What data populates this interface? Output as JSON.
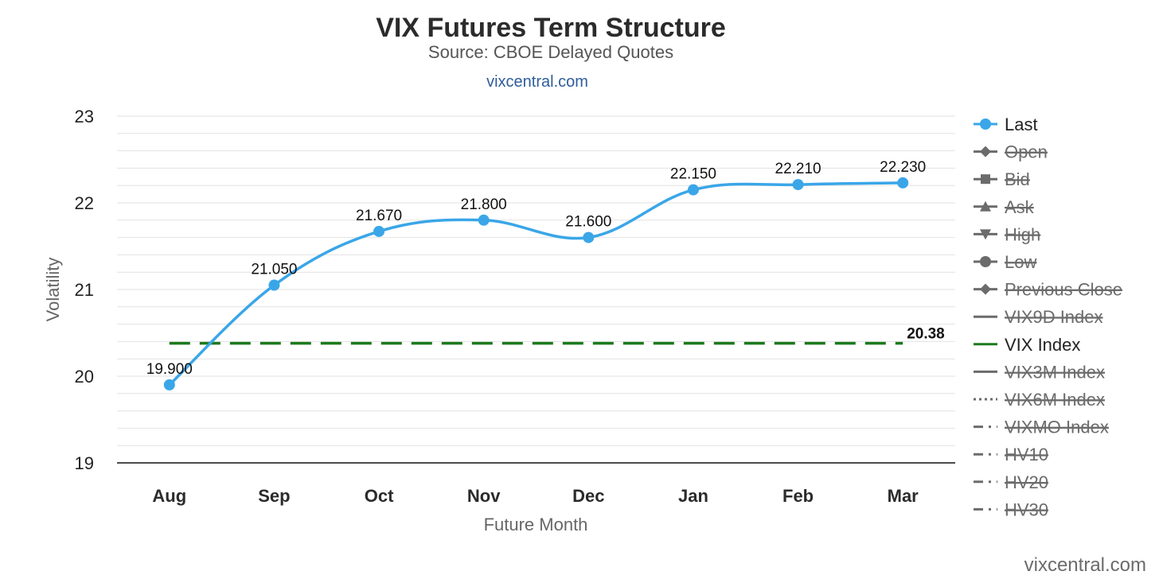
{
  "chart_data": {
    "type": "line",
    "title": "VIX Futures Term Structure",
    "subtitle": "Source: CBOE Delayed Quotes",
    "credit": "vixcentral.com",
    "watermark": "vixcentral.com",
    "xlabel": "Future Month",
    "ylabel": "Volatility",
    "ylim": [
      19,
      23
    ],
    "yticks": [
      19,
      20,
      21,
      22,
      23
    ],
    "grid": true,
    "legend_position": "right",
    "categories": [
      "Aug",
      "Sep",
      "Oct",
      "Nov",
      "Dec",
      "Jan",
      "Feb",
      "Mar"
    ],
    "series": [
      {
        "name": "Last",
        "values": [
          19.9,
          21.05,
          21.67,
          21.8,
          21.6,
          22.15,
          22.21,
          22.23
        ],
        "labels": [
          "19.900",
          "21.050",
          "21.670",
          "21.800",
          "21.600",
          "22.150",
          "22.210",
          "22.230"
        ],
        "color": "#3aa6e8"
      },
      {
        "name": "VIX Index",
        "value": 20.38,
        "label": "20.38",
        "color": "#1c7a1c",
        "style": "dashed"
      }
    ],
    "legend": [
      {
        "name": "Last",
        "visible": true,
        "symbol": "circle",
        "line": "solid",
        "color": "#3aa6e8"
      },
      {
        "name": "Open",
        "visible": false,
        "symbol": "diamond",
        "line": "solid",
        "color": "#6b6b6b"
      },
      {
        "name": "Bid",
        "visible": false,
        "symbol": "square",
        "line": "solid",
        "color": "#6b6b6b"
      },
      {
        "name": "Ask",
        "visible": false,
        "symbol": "triangle",
        "line": "solid",
        "color": "#6b6b6b"
      },
      {
        "name": "High",
        "visible": false,
        "symbol": "triangle-down",
        "line": "solid",
        "color": "#6b6b6b"
      },
      {
        "name": "Low",
        "visible": false,
        "symbol": "circle",
        "line": "solid",
        "color": "#6b6b6b"
      },
      {
        "name": "Previous Close",
        "visible": false,
        "symbol": "diamond",
        "line": "solid",
        "color": "#6b6b6b"
      },
      {
        "name": "VIX9D Index",
        "visible": false,
        "symbol": "none",
        "line": "solid",
        "color": "#6b6b6b"
      },
      {
        "name": "VIX Index",
        "visible": true,
        "symbol": "none",
        "line": "solid",
        "color": "#1c7a1c"
      },
      {
        "name": "VIX3M Index",
        "visible": false,
        "symbol": "none",
        "line": "solid",
        "color": "#6b6b6b"
      },
      {
        "name": "VIX6M Index",
        "visible": false,
        "symbol": "none",
        "line": "dotted",
        "color": "#6b6b6b"
      },
      {
        "name": "VIXMO Index",
        "visible": false,
        "symbol": "none",
        "line": "dashdot",
        "color": "#6b6b6b"
      },
      {
        "name": "HV10",
        "visible": false,
        "symbol": "none",
        "line": "dashdot",
        "color": "#6b6b6b"
      },
      {
        "name": "HV20",
        "visible": false,
        "symbol": "none",
        "line": "dashdot",
        "color": "#6b6b6b"
      },
      {
        "name": "HV30",
        "visible": false,
        "symbol": "none",
        "line": "dashdot",
        "color": "#6b6b6b"
      }
    ]
  }
}
